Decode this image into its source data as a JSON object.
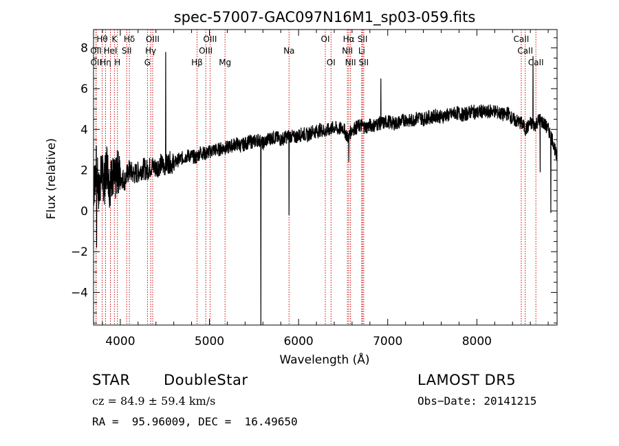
{
  "chart_data": {
    "type": "line",
    "title": "spec-57007-GAC097N16M1_sp03-059.fits",
    "xlabel": "Wavelength (Å)",
    "ylabel": "Flux (relative)",
    "xlim": [
      3700,
      8900
    ],
    "ylim": [
      -5.6,
      8.9
    ],
    "x_ticks": [
      4000,
      5000,
      6000,
      7000,
      8000
    ],
    "y_ticks": [
      -4,
      -2,
      0,
      2,
      4,
      6,
      8
    ],
    "x_tick_labels": [
      "4000",
      "5000",
      "6000",
      "7000",
      "8000"
    ],
    "y_tick_labels": [
      "−4",
      "−2",
      "0",
      "2",
      "4",
      "6",
      "8"
    ],
    "grid": false,
    "line_color": "#000000",
    "marker_color": "#cc0000",
    "series": [
      {
        "x": [
          3700,
          3730,
          3760,
          3790,
          3820,
          3850,
          3880,
          3910,
          3940,
          3970,
          4000,
          4050,
          4100,
          4150,
          4200,
          4250,
          4300,
          4350,
          4400,
          4450,
          4500,
          4550,
          4600,
          4650,
          4700,
          4750,
          4800,
          4850,
          4900,
          4950,
          5000,
          5050,
          5100,
          5150,
          5200,
          5250,
          5300,
          5350,
          5400,
          5450,
          5500,
          5550,
          5600,
          5650,
          5700,
          5750,
          5800,
          5850,
          5900,
          5950,
          6000,
          6050,
          6100,
          6150,
          6200,
          6250,
          6300,
          6350,
          6400,
          6450,
          6500,
          6550,
          6600,
          6650,
          6700,
          6750,
          6800,
          6850,
          6900,
          6950,
          7000,
          7050,
          7100,
          7150,
          7200,
          7250,
          7300,
          7350,
          7400,
          7450,
          7500,
          7550,
          7600,
          7650,
          7700,
          7750,
          7800,
          7850,
          7900,
          7950,
          8000,
          8050,
          8100,
          8150,
          8200,
          8250,
          8300,
          8350,
          8400,
          8450,
          8500,
          8550,
          8600,
          8650,
          8700,
          8750,
          8800,
          8850,
          8900
        ],
        "y": [
          1.0,
          2.2,
          0.9,
          2.0,
          1.3,
          2.4,
          1.2,
          1.8,
          1.4,
          2.0,
          1.7,
          1.5,
          2.0,
          1.8,
          1.9,
          2.1,
          2.0,
          2.2,
          2.1,
          2.3,
          2.2,
          2.4,
          2.3,
          2.5,
          2.6,
          2.7,
          2.7,
          2.6,
          2.9,
          2.8,
          2.9,
          3.0,
          3.0,
          3.1,
          3.1,
          3.2,
          3.3,
          3.2,
          3.3,
          3.4,
          3.4,
          3.5,
          3.3,
          3.5,
          3.6,
          3.6,
          3.5,
          3.6,
          3.7,
          3.6,
          3.7,
          3.8,
          3.7,
          3.9,
          3.9,
          4.0,
          3.9,
          4.0,
          4.1,
          4.0,
          4.1,
          3.6,
          4.0,
          4.1,
          4.2,
          4.1,
          4.2,
          4.2,
          4.3,
          4.3,
          4.4,
          4.3,
          4.3,
          4.4,
          4.5,
          4.4,
          4.5,
          4.6,
          4.5,
          4.6,
          4.6,
          4.7,
          4.6,
          4.7,
          4.7,
          4.8,
          4.8,
          4.7,
          4.8,
          4.9,
          4.8,
          4.9,
          4.8,
          4.9,
          4.9,
          4.8,
          4.7,
          4.8,
          4.5,
          4.4,
          4.3,
          4.0,
          4.3,
          4.2,
          4.5,
          4.3,
          4.0,
          3.5,
          2.5
        ]
      }
    ],
    "spikes": [
      {
        "x": 3735,
        "y": -1.8
      },
      {
        "x": 4509,
        "y": 7.8
      },
      {
        "x": 5577,
        "y": -5.6
      },
      {
        "x": 5893,
        "y": -0.2
      },
      {
        "x": 6563,
        "y": 2.4
      },
      {
        "x": 6923,
        "y": 6.5
      },
      {
        "x": 8630,
        "y": 7.6
      },
      {
        "x": 8710,
        "y": 1.9
      },
      {
        "x": 8830,
        "y": -0.1
      }
    ],
    "lines_top": [
      {
        "label": "Hθ",
        "x": 3797
      },
      {
        "label": "K",
        "x": 3934
      },
      {
        "label": "Hδ",
        "x": 4102
      },
      {
        "label": "OIII",
        "x": 4363
      },
      {
        "label": "OIII",
        "x": 5007
      },
      {
        "label": "OI",
        "x": 6300
      },
      {
        "label": "Hα",
        "x": 6563
      },
      {
        "label": "SII",
        "x": 6717
      },
      {
        "label": "CaII",
        "x": 8498
      }
    ],
    "lines_mid": [
      {
        "label": "OII",
        "x": 3727
      },
      {
        "label": "HeI",
        "x": 3889
      },
      {
        "label": "SII",
        "x": 4072
      },
      {
        "label": "Hγ",
        "x": 4341
      },
      {
        "label": "OIII",
        "x": 4959
      },
      {
        "label": "Na",
        "x": 5893
      },
      {
        "label": "NII",
        "x": 6548
      },
      {
        "label": "Li",
        "x": 6708
      },
      {
        "label": "CaII",
        "x": 8542
      }
    ],
    "lines_low": [
      {
        "label": "OII",
        "x": 3729
      },
      {
        "label": "Hη",
        "x": 3835
      },
      {
        "label": "H",
        "x": 3968
      },
      {
        "label": "G",
        "x": 4305
      },
      {
        "label": "Hβ",
        "x": 4861
      },
      {
        "label": "Mg",
        "x": 5175
      },
      {
        "label": "OI",
        "x": 6364
      },
      {
        "label": "NII",
        "x": 6583
      },
      {
        "label": "SII",
        "x": 6731
      },
      {
        "label": "CaII",
        "x": 8662
      }
    ]
  },
  "info": {
    "class": "STAR",
    "subclass": "DoubleStar",
    "survey": "LAMOST DR5",
    "cz": "cz = 84.9 ± 59.4 km/s",
    "obs_date": "Obs−Date: 20141215",
    "coords": "RA =  95.96009, DEC =  16.49650"
  }
}
